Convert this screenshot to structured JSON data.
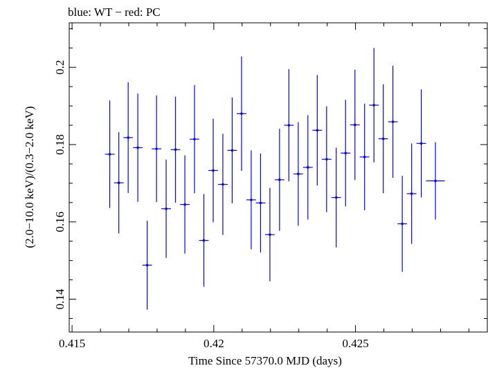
{
  "chart_data": {
    "type": "scatter",
    "title": "blue: WT − red: PC",
    "xlabel": "Time Since 57370.0 MJD (days)",
    "ylabel": "(2.0−10.0 keV)/(0.3−2.0 keV)",
    "xlim": [
      0.4149,
      0.42965
    ],
    "ylim": [
      0.1315,
      0.2115
    ],
    "x_ticks": [
      0.415,
      0.42,
      0.425
    ],
    "x_tick_labels": [
      "0.415",
      "0.42",
      "0.425"
    ],
    "y_ticks": [
      0.14,
      0.16,
      0.18,
      0.2
    ],
    "y_tick_labels": [
      "0.14",
      "0.16",
      "0.18",
      "0.2"
    ],
    "grid": false,
    "series": [
      {
        "name": "WT",
        "color": "#0000ff",
        "points": [
          {
            "x": 0.41633,
            "xerr": 0.00017,
            "y": 0.1775,
            "yerr": 0.0139
          },
          {
            "x": 0.41665,
            "xerr": 0.00017,
            "y": 0.1701,
            "yerr": 0.0131
          },
          {
            "x": 0.41698,
            "xerr": 0.00017,
            "y": 0.1818,
            "yerr": 0.0143
          },
          {
            "x": 0.41732,
            "xerr": 0.00017,
            "y": 0.1792,
            "yerr": 0.014
          },
          {
            "x": 0.41765,
            "xerr": 0.00017,
            "y": 0.1488,
            "yerr": 0.0115
          },
          {
            "x": 0.41798,
            "xerr": 0.00017,
            "y": 0.1789,
            "yerr": 0.0138
          },
          {
            "x": 0.41832,
            "xerr": 0.00017,
            "y": 0.1634,
            "yerr": 0.0127
          },
          {
            "x": 0.41865,
            "xerr": 0.00017,
            "y": 0.1787,
            "yerr": 0.0137
          },
          {
            "x": 0.41898,
            "xerr": 0.00017,
            "y": 0.1645,
            "yerr": 0.0127
          },
          {
            "x": 0.41932,
            "xerr": 0.00017,
            "y": 0.1814,
            "yerr": 0.014
          },
          {
            "x": 0.41965,
            "xerr": 0.00017,
            "y": 0.1552,
            "yerr": 0.012
          },
          {
            "x": 0.41998,
            "xerr": 0.00017,
            "y": 0.1733,
            "yerr": 0.0134
          },
          {
            "x": 0.42032,
            "xerr": 0.00017,
            "y": 0.1697,
            "yerr": 0.0131
          },
          {
            "x": 0.42065,
            "xerr": 0.00017,
            "y": 0.1785,
            "yerr": 0.0137
          },
          {
            "x": 0.42098,
            "xerr": 0.00017,
            "y": 0.188,
            "yerr": 0.0148
          },
          {
            "x": 0.42132,
            "xerr": 0.00017,
            "y": 0.1657,
            "yerr": 0.0128
          },
          {
            "x": 0.42165,
            "xerr": 0.00017,
            "y": 0.1649,
            "yerr": 0.0128
          },
          {
            "x": 0.42198,
            "xerr": 0.00017,
            "y": 0.1567,
            "yerr": 0.0121
          },
          {
            "x": 0.42232,
            "xerr": 0.00017,
            "y": 0.1709,
            "yerr": 0.0132
          },
          {
            "x": 0.42265,
            "xerr": 0.00017,
            "y": 0.185,
            "yerr": 0.0145
          },
          {
            "x": 0.42298,
            "xerr": 0.00017,
            "y": 0.1724,
            "yerr": 0.0134
          },
          {
            "x": 0.42332,
            "xerr": 0.00017,
            "y": 0.1741,
            "yerr": 0.0135
          },
          {
            "x": 0.42365,
            "xerr": 0.00017,
            "y": 0.1837,
            "yerr": 0.0143
          },
          {
            "x": 0.42398,
            "xerr": 0.00017,
            "y": 0.1762,
            "yerr": 0.0137
          },
          {
            "x": 0.42432,
            "xerr": 0.00017,
            "y": 0.1663,
            "yerr": 0.0129
          },
          {
            "x": 0.42465,
            "xerr": 0.00017,
            "y": 0.1778,
            "yerr": 0.0138
          },
          {
            "x": 0.42498,
            "xerr": 0.00017,
            "y": 0.1851,
            "yerr": 0.0143
          },
          {
            "x": 0.42532,
            "xerr": 0.00017,
            "y": 0.1768,
            "yerr": 0.0138
          },
          {
            "x": 0.42565,
            "xerr": 0.00017,
            "y": 0.1902,
            "yerr": 0.0148
          },
          {
            "x": 0.42598,
            "xerr": 0.00017,
            "y": 0.1815,
            "yerr": 0.0141
          },
          {
            "x": 0.42632,
            "xerr": 0.00017,
            "y": 0.1859,
            "yerr": 0.0145
          },
          {
            "x": 0.42665,
            "xerr": 0.00017,
            "y": 0.1595,
            "yerr": 0.0124
          },
          {
            "x": 0.42698,
            "xerr": 0.00017,
            "y": 0.1673,
            "yerr": 0.013
          },
          {
            "x": 0.42732,
            "xerr": 0.00017,
            "y": 0.1803,
            "yerr": 0.014
          },
          {
            "x": 0.42782,
            "xerr": 0.00033,
            "y": 0.1706,
            "yerr": 0.01
          }
        ]
      }
    ]
  }
}
